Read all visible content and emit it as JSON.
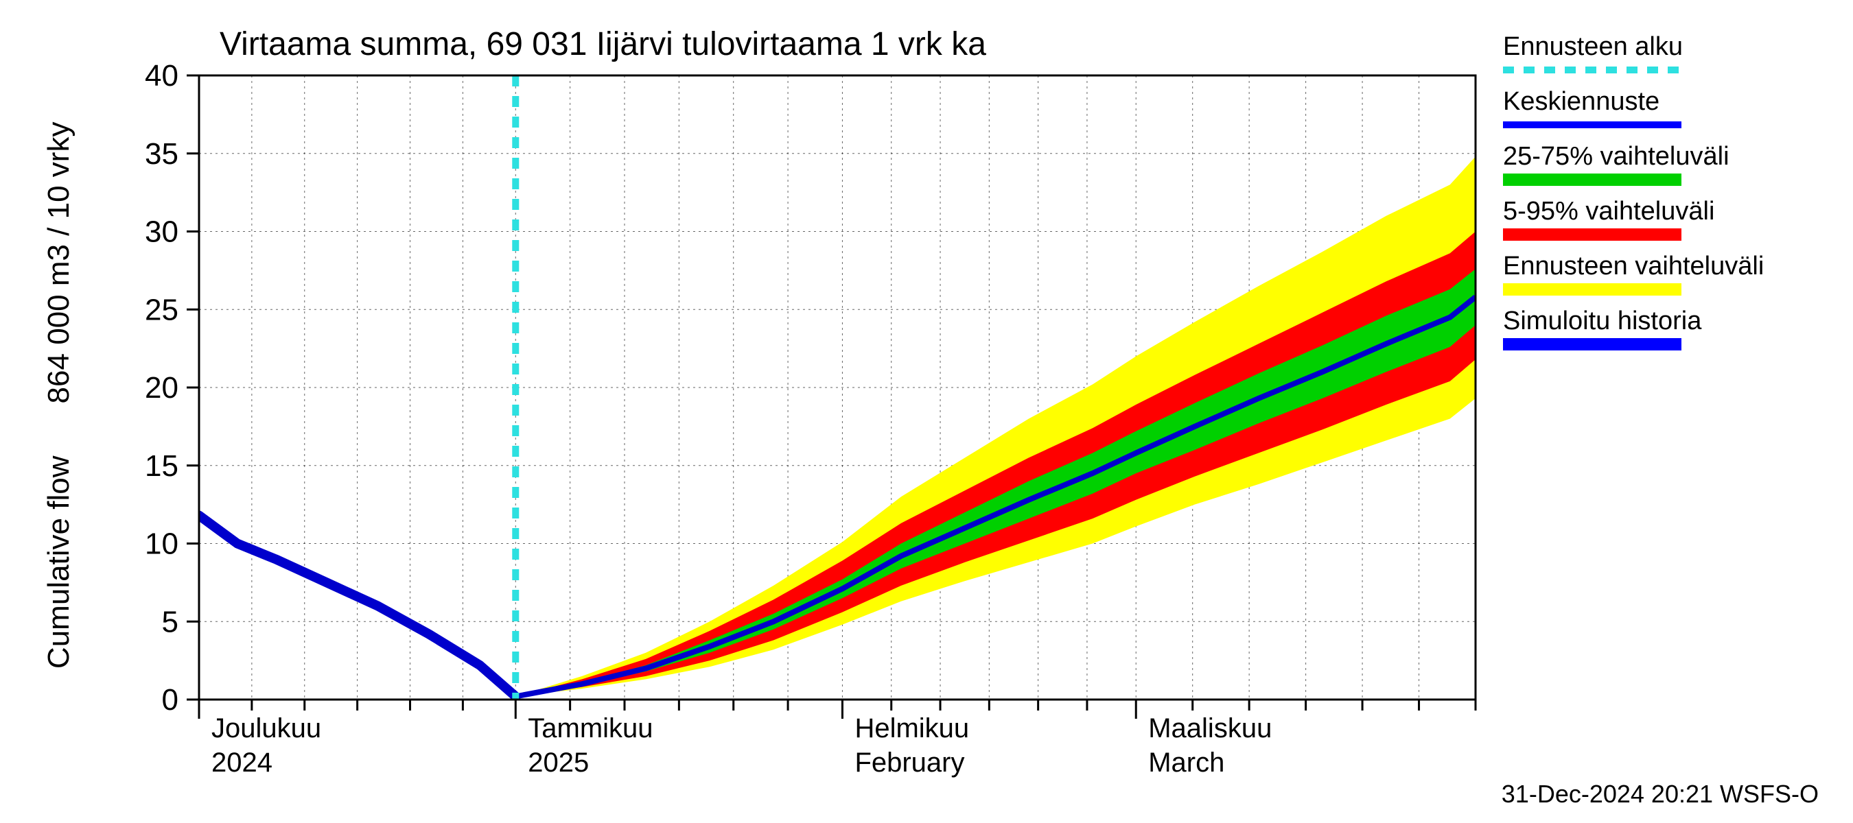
{
  "chart": {
    "type": "fan-line",
    "title": "Virtaama summa, 69 031 Iijärvi tulovirtaama 1 vrk ka",
    "title_fontsize": 48,
    "ylabel_top": "864 000 m3 / 10 vrky",
    "ylabel_bottom": "Cumulative flow",
    "label_fontsize": 44,
    "footer": "31-Dec-2024 20:21 WSFS-O",
    "footer_fontsize": 36,
    "background_color": "#ffffff",
    "grid_color": "#000000",
    "grid_dash": "3,5",
    "axis_color": "#000000",
    "ylim": [
      0,
      40
    ],
    "ytick_step": 5,
    "yticks": [
      0,
      5,
      10,
      15,
      20,
      25,
      30,
      35,
      40
    ],
    "x_months": [
      {
        "fi": "Joulukuu",
        "en": "",
        "year": "2024",
        "start_pct": 0.0
      },
      {
        "fi": "Tammikuu",
        "en": "",
        "year": "2025",
        "start_pct": 0.248
      },
      {
        "fi": "Helmikuu",
        "en": "February",
        "year": "",
        "start_pct": 0.504
      },
      {
        "fi": "Maaliskuu",
        "en": "March",
        "year": "",
        "start_pct": 0.734
      }
    ],
    "x_domain": [
      "2024-12-01",
      "2025-04-05"
    ],
    "forecast_start_pct": 0.248,
    "minor_ticks_per_month": 6,
    "right_edge_extra_ticks": 6,
    "legend": {
      "items": [
        {
          "label": "Ennusteen alku",
          "type": "dashed",
          "color": "#2de0e0",
          "width": 10
        },
        {
          "label": "Keskiennuste",
          "type": "line",
          "color": "#0000ff",
          "width": 10
        },
        {
          "label": "25-75% vaihteluväli",
          "type": "line",
          "color": "#00d000",
          "width": 18
        },
        {
          "label": "5-95% vaihteluväli",
          "type": "line",
          "color": "#ff0000",
          "width": 18
        },
        {
          "label": "Ennusteen vaihteluväli",
          "type": "line",
          "color": "#ffff00",
          "width": 18
        },
        {
          "label": "Simuloitu historia",
          "type": "line",
          "color": "#0000ff",
          "width": 18
        }
      ]
    },
    "colors": {
      "history": "#0000cc",
      "median": "#0000cc",
      "p25_75": "#00d000",
      "p5_95": "#ff0000",
      "full": "#ffff00",
      "forecast_line": "#2de0e0"
    },
    "line_widths": {
      "history": 14,
      "median": 8,
      "forecast_line": 10
    },
    "series": {
      "x_pct": [
        0.0,
        0.03,
        0.06,
        0.1,
        0.14,
        0.18,
        0.22,
        0.248,
        0.3,
        0.35,
        0.4,
        0.45,
        0.504,
        0.55,
        0.6,
        0.65,
        0.7,
        0.734,
        0.78,
        0.83,
        0.88,
        0.93,
        0.98,
        1.0
      ],
      "history": [
        11.8,
        10.0,
        9.0,
        7.5,
        6.0,
        4.2,
        2.2,
        0.2
      ],
      "median": [
        0.2,
        1.0,
        2.0,
        3.4,
        5.0,
        7.1,
        9.2,
        11.0,
        12.8,
        14.5,
        15.8,
        17.5,
        19.3,
        21.0,
        22.8,
        24.5,
        25.8,
        26.3
      ],
      "p25_low": [
        0.2,
        0.9,
        1.8,
        3.0,
        4.5,
        6.5,
        8.4,
        10.0,
        11.6,
        13.2,
        14.5,
        16.0,
        17.7,
        19.3,
        21.0,
        22.6,
        24.0,
        24.5
      ],
      "p25_high": [
        0.2,
        1.1,
        2.2,
        3.8,
        5.5,
        7.7,
        10.0,
        12.0,
        14.0,
        15.8,
        17.2,
        19.0,
        20.9,
        22.7,
        24.6,
        26.3,
        27.6,
        28.2
      ],
      "p5_low": [
        0.2,
        0.8,
        1.5,
        2.5,
        3.8,
        5.6,
        7.3,
        8.8,
        10.2,
        11.6,
        12.8,
        14.3,
        15.8,
        17.3,
        18.9,
        20.4,
        21.8,
        22.3
      ],
      "p5_high": [
        0.2,
        1.3,
        2.6,
        4.4,
        6.4,
        8.9,
        11.3,
        13.4,
        15.5,
        17.4,
        18.9,
        20.8,
        22.8,
        24.8,
        26.8,
        28.6,
        30.0,
        30.6
      ],
      "full_low": [
        0.2,
        0.7,
        1.3,
        2.1,
        3.2,
        4.8,
        6.3,
        7.6,
        8.8,
        10.0,
        11.1,
        12.5,
        13.8,
        15.2,
        16.6,
        18.0,
        19.3,
        19.8
      ],
      "full_high": [
        0.2,
        1.5,
        3.0,
        5.0,
        7.3,
        10.1,
        13.0,
        15.5,
        18.0,
        20.2,
        22.0,
        24.2,
        26.5,
        28.7,
        31.0,
        33.0,
        34.8,
        36.5
      ]
    }
  }
}
